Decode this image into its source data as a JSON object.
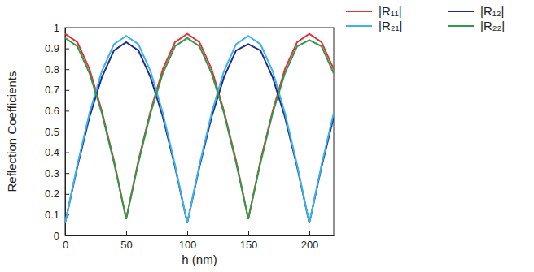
{
  "chart_data": {
    "type": "line",
    "x_label": "h (nm)",
    "y_label": "Reflection Coefficients",
    "x": [
      0,
      10,
      20,
      30,
      40,
      50,
      60,
      70,
      80,
      90,
      100,
      110,
      120,
      130,
      140,
      150,
      160,
      170,
      180,
      190,
      200,
      210,
      220
    ],
    "series": [
      {
        "name": "|R₁₁|",
        "color": "#e8303a",
        "values": [
          0.97,
          0.93,
          0.8,
          0.6,
          0.36,
          0.08,
          0.36,
          0.6,
          0.8,
          0.93,
          0.97,
          0.93,
          0.8,
          0.6,
          0.36,
          0.08,
          0.36,
          0.6,
          0.8,
          0.93,
          0.97,
          0.93,
          0.8
        ]
      },
      {
        "name": "|R₁₂|",
        "color": "#1f2a8c",
        "values": [
          0.06,
          0.33,
          0.57,
          0.76,
          0.89,
          0.93,
          0.89,
          0.76,
          0.57,
          0.33,
          0.06,
          0.33,
          0.57,
          0.76,
          0.89,
          0.92,
          0.89,
          0.76,
          0.57,
          0.33,
          0.06,
          0.33,
          0.57
        ]
      },
      {
        "name": "|R₂₁|",
        "color": "#3ab4ea",
        "values": [
          0.06,
          0.34,
          0.59,
          0.79,
          0.92,
          0.96,
          0.92,
          0.79,
          0.59,
          0.34,
          0.06,
          0.34,
          0.59,
          0.79,
          0.92,
          0.96,
          0.92,
          0.79,
          0.59,
          0.34,
          0.06,
          0.34,
          0.59
        ]
      },
      {
        "name": "|R₂₂|",
        "color": "#2e9a4a",
        "values": [
          0.95,
          0.91,
          0.78,
          0.59,
          0.35,
          0.08,
          0.35,
          0.59,
          0.78,
          0.91,
          0.95,
          0.91,
          0.78,
          0.59,
          0.35,
          0.08,
          0.35,
          0.59,
          0.78,
          0.91,
          0.94,
          0.91,
          0.78
        ]
      }
    ],
    "xlim": [
      0,
      220
    ],
    "xticks": [
      0,
      50,
      100,
      150,
      200
    ],
    "ylim": [
      0,
      1
    ],
    "yticks": [
      0,
      0.1,
      0.2,
      0.3,
      0.4,
      0.5,
      0.6,
      0.7,
      0.8,
      0.9,
      1
    ],
    "grid": false,
    "legend": "top-right"
  }
}
